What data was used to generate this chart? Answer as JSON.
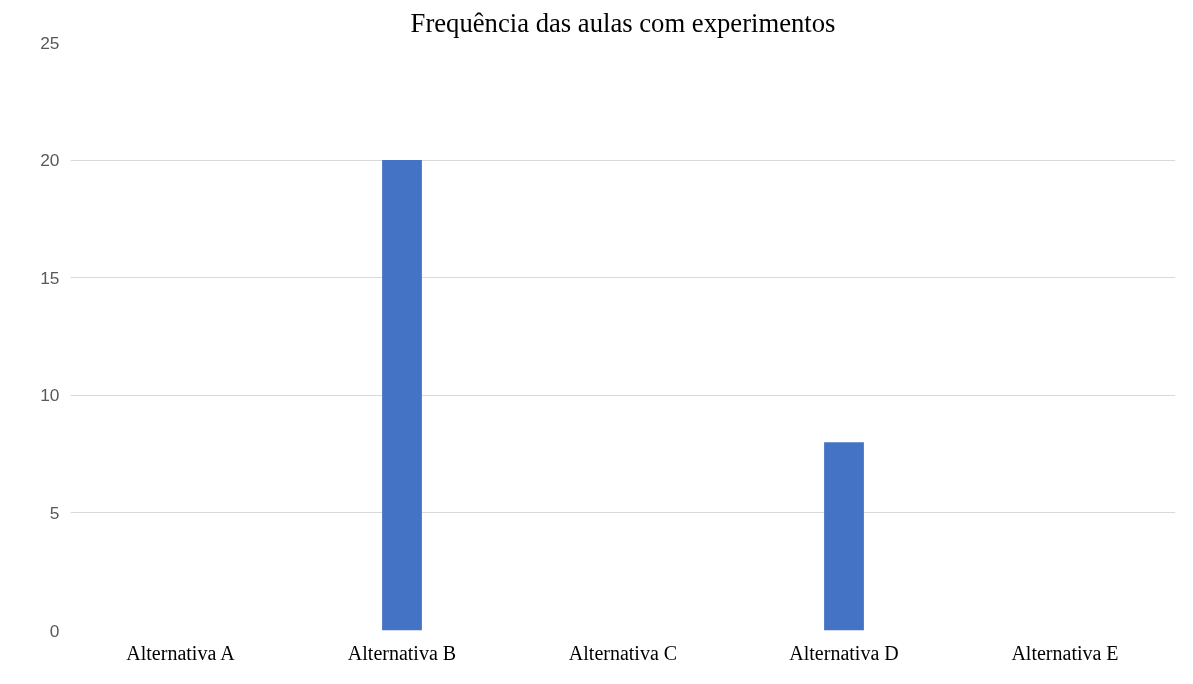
{
  "chart_data": {
    "type": "bar",
    "title": "Frequência das aulas com experimentos",
    "categories": [
      "Alternativa A",
      "Alternativa B",
      "Alternativa C",
      "Alternativa D",
      "Alternativa E"
    ],
    "values": [
      0,
      20,
      0,
      8,
      0
    ],
    "color": "#4472c4",
    "ylim": [
      0,
      25
    ],
    "yticks": [
      0,
      5,
      10,
      15,
      20,
      25
    ],
    "grid": "y"
  }
}
